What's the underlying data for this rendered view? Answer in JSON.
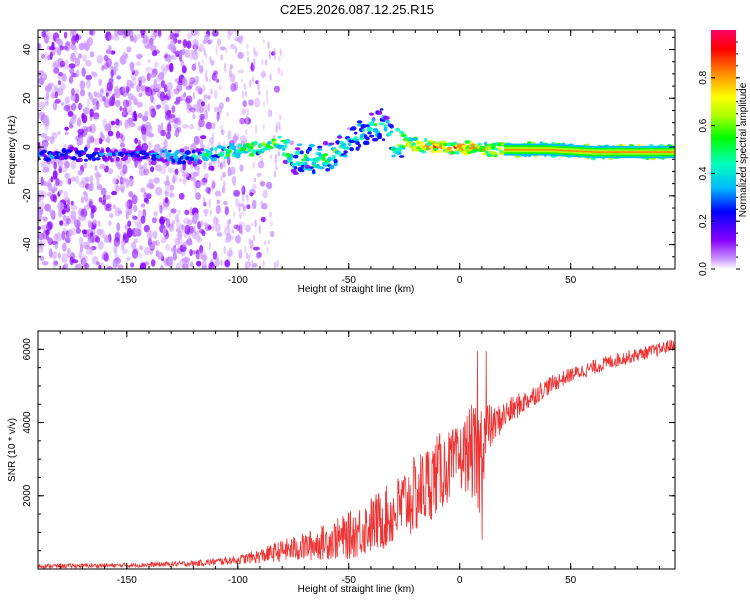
{
  "title": "C2E5.2026.087.12.25.R15",
  "chart_data": [
    {
      "type": "heatmap",
      "name": "spectrogram",
      "xlabel": "Height of straight line (km)",
      "ylabel": "Frequency (Hz)",
      "xlim": [
        -190,
        97
      ],
      "ylim": [
        -50,
        48
      ],
      "xticks": [
        -150,
        -100,
        -50,
        0,
        50
      ],
      "yticks": [
        -40,
        -20,
        0,
        20,
        40
      ],
      "colorbar": {
        "label": "Normalized spectral amplitude",
        "range": [
          0.0,
          1.0
        ],
        "ticks": [
          0.0,
          0.2,
          0.4,
          0.6,
          0.8
        ],
        "tick_labels": [
          "0.0",
          "0.2",
          "0.4",
          "0.6",
          "0.8"
        ],
        "colormap": [
          "#ffffff",
          "#cc99ff",
          "#8800ff",
          "#0000ff",
          "#00bbff",
          "#00ffbb",
          "#00ff00",
          "#aaff00",
          "#ffff00",
          "#ff8800",
          "#ff0000",
          "#ff0066"
        ]
      },
      "ridge": {
        "x": [
          -190,
          -140,
          -120,
          -105,
          -95,
          -85,
          -80,
          -75,
          -65,
          -55,
          -50,
          -45,
          -40,
          -35,
          -30,
          -25,
          -20,
          -10,
          0,
          10,
          20,
          40,
          60,
          80,
          97
        ],
        "center": [
          -3,
          -3,
          -4,
          -2,
          -1,
          1,
          2,
          -5,
          -5,
          -2,
          2,
          5,
          8,
          10,
          2,
          2,
          1,
          0,
          0,
          -1,
          -1,
          -1,
          -2,
          -2,
          -2
        ],
        "intensity": [
          0.35,
          0.35,
          0.45,
          0.55,
          0.6,
          0.7,
          0.6,
          0.55,
          0.6,
          0.6,
          0.5,
          0.5,
          0.55,
          0.5,
          0.65,
          0.7,
          0.8,
          0.85,
          0.85,
          0.8,
          0.7,
          0.72,
          0.75,
          0.78,
          0.8
        ]
      }
    },
    {
      "type": "line",
      "name": "snr",
      "xlabel": "Height of straight line (km)",
      "ylabel": "SNR (10 * v/v)",
      "xlim": [
        -190,
        97
      ],
      "ylim": [
        0,
        6500
      ],
      "xticks": [
        -150,
        -100,
        -50,
        0,
        50
      ],
      "yticks": [
        2000,
        4000,
        6000
      ],
      "color": "#ee3333",
      "envelope": {
        "x": [
          -190,
          -150,
          -120,
          -100,
          -90,
          -80,
          -70,
          -60,
          -50,
          -40,
          -30,
          -25,
          -20,
          -15,
          -10,
          -5,
          0,
          5,
          8,
          10,
          12,
          15,
          20,
          30,
          40,
          50,
          60,
          70,
          80,
          90,
          97
        ],
        "mean": [
          80,
          100,
          150,
          250,
          350,
          500,
          600,
          750,
          900,
          1200,
          1500,
          1800,
          2000,
          2300,
          2600,
          2800,
          3000,
          3300,
          2700,
          3400,
          3800,
          3900,
          4200,
          4600,
          5000,
          5300,
          5500,
          5700,
          5850,
          6000,
          6150
        ],
        "noise": [
          60,
          60,
          80,
          120,
          200,
          300,
          400,
          500,
          650,
          800,
          900,
          1000,
          1100,
          1100,
          1100,
          1000,
          900,
          1200,
          1700,
          1500,
          900,
          500,
          400,
          300,
          250,
          200,
          200,
          200,
          180,
          180,
          180
        ]
      },
      "spikes": [
        {
          "x": 8,
          "y": 5950
        },
        {
          "x": 12,
          "y": 5950
        },
        {
          "x": 10,
          "y": 800
        }
      ]
    }
  ]
}
